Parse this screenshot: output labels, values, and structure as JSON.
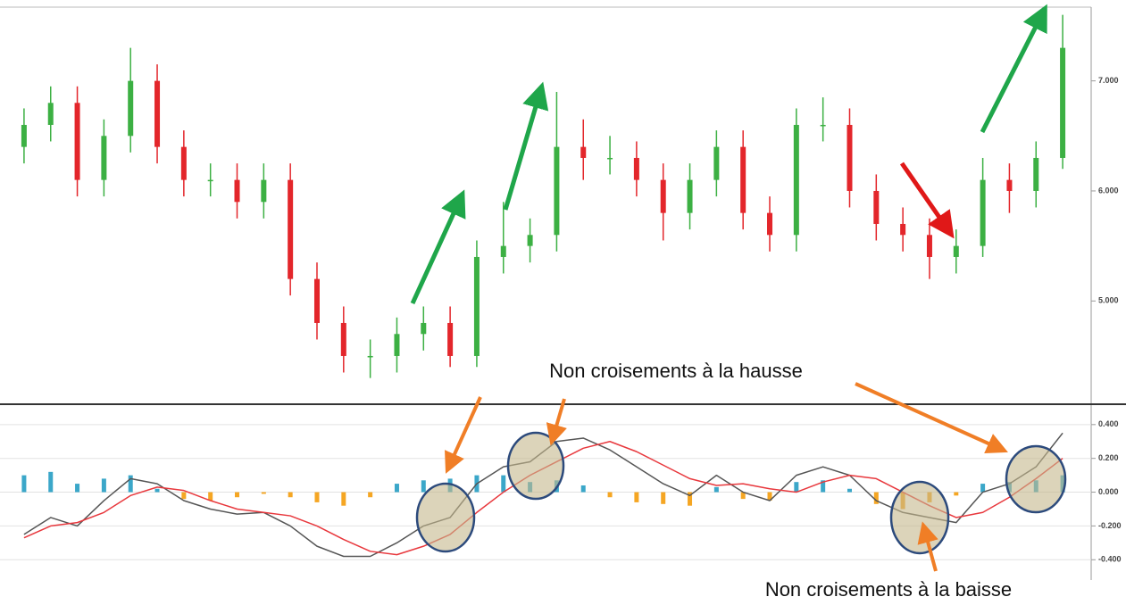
{
  "chart_data": [
    {
      "type": "candlestick",
      "open": [
        6.4,
        6.6,
        6.8,
        6.1,
        6.5,
        7.0,
        6.4,
        6.1,
        6.1,
        5.9,
        6.1,
        5.2,
        4.8,
        4.5,
        4.5,
        4.7,
        4.8,
        4.5,
        5.4,
        5.5,
        5.6,
        6.4,
        6.3,
        6.3,
        6.1,
        5.8,
        6.1,
        6.4,
        5.8,
        5.6,
        6.6,
        6.6,
        6.0,
        5.7,
        5.6,
        5.4,
        5.5,
        6.1,
        6.0,
        6.3
      ],
      "high": [
        6.75,
        6.95,
        6.95,
        6.65,
        7.3,
        7.15,
        6.55,
        6.25,
        6.25,
        6.25,
        6.25,
        5.35,
        4.95,
        4.65,
        4.85,
        4.95,
        4.95,
        5.55,
        5.9,
        5.75,
        6.9,
        6.65,
        6.5,
        6.45,
        6.25,
        6.25,
        6.55,
        6.55,
        5.95,
        6.75,
        6.85,
        6.75,
        6.15,
        5.85,
        5.75,
        5.65,
        6.3,
        6.25,
        6.45,
        7.6
      ],
      "low": [
        6.25,
        6.45,
        5.95,
        5.95,
        6.35,
        6.25,
        5.95,
        5.95,
        5.75,
        5.75,
        5.05,
        4.65,
        4.35,
        4.3,
        4.35,
        4.55,
        4.4,
        4.4,
        5.25,
        5.35,
        5.45,
        6.1,
        6.15,
        5.95,
        5.55,
        5.65,
        5.95,
        5.65,
        5.45,
        5.45,
        6.45,
        5.85,
        5.55,
        5.45,
        5.2,
        5.25,
        5.4,
        5.8,
        5.85,
        6.2
      ],
      "close": [
        6.6,
        6.8,
        6.1,
        6.5,
        7.0,
        6.4,
        6.1,
        6.1,
        5.9,
        6.1,
        5.2,
        4.8,
        4.5,
        4.5,
        4.7,
        4.8,
        4.5,
        5.4,
        5.5,
        5.6,
        6.4,
        6.3,
        6.3,
        6.1,
        5.8,
        6.1,
        6.4,
        5.8,
        5.6,
        6.6,
        6.6,
        6.0,
        5.7,
        5.6,
        5.4,
        5.5,
        6.1,
        6.0,
        6.3,
        7.3
      ],
      "up_color": "#3cb043",
      "down_color": "#e3262b",
      "ylim": [
        4.07,
        7.67
      ],
      "yticks": [
        {
          "value": 7,
          "label": "7.000"
        },
        {
          "value": 6,
          "label": "6.000"
        },
        {
          "value": 5,
          "label": "5.000"
        }
      ]
    },
    {
      "type": "macd",
      "series": [
        {
          "color": "#555555",
          "values": [
            -0.25,
            -0.15,
            -0.2,
            -0.05,
            0.08,
            0.05,
            -0.05,
            -0.1,
            -0.13,
            -0.12,
            -0.2,
            -0.32,
            -0.38,
            -0.38,
            -0.3,
            -0.2,
            -0.15,
            0.05,
            0.15,
            0.18,
            0.3,
            0.32,
            0.25,
            0.15,
            0.05,
            -0.02,
            0.1,
            0.0,
            -0.05,
            0.1,
            0.15,
            0.1,
            -0.05,
            -0.12,
            -0.15,
            -0.18,
            0.0,
            0.05,
            0.15,
            0.35
          ]
        },
        {
          "color": "#e8383d",
          "values": [
            -0.27,
            -0.2,
            -0.18,
            -0.12,
            -0.02,
            0.03,
            0.01,
            -0.05,
            -0.1,
            -0.12,
            -0.14,
            -0.2,
            -0.28,
            -0.35,
            -0.37,
            -0.32,
            -0.25,
            -0.12,
            0.0,
            0.1,
            0.18,
            0.26,
            0.3,
            0.24,
            0.16,
            0.08,
            0.04,
            0.05,
            0.02,
            0.0,
            0.06,
            0.1,
            0.08,
            0.0,
            -0.08,
            -0.15,
            -0.12,
            -0.03,
            0.08,
            0.2
          ]
        }
      ],
      "histogram": {
        "values": [
          0.1,
          0.12,
          0.05,
          0.08,
          0.1,
          0.02,
          -0.04,
          -0.05,
          -0.03,
          -0.01,
          -0.03,
          -0.06,
          -0.08,
          -0.03,
          0.05,
          0.07,
          0.08,
          0.1,
          0.1,
          0.06,
          0.07,
          0.04,
          -0.03,
          -0.06,
          -0.07,
          -0.08,
          0.03,
          -0.04,
          -0.05,
          0.06,
          0.07,
          0.02,
          -0.07,
          -0.1,
          -0.06,
          -0.02,
          0.05,
          0.06,
          0.07,
          0.1
        ],
        "positive_color": "#3ba7c9",
        "negative_color": "#f5a623"
      },
      "ylim": [
        -0.52,
        0.51
      ],
      "yticks": [
        {
          "value": 0.4,
          "label": "0.400"
        },
        {
          "value": 0.2,
          "label": "0.200"
        },
        {
          "value": 0,
          "label": "0.000"
        },
        {
          "value": -0.2,
          "label": "-0.200"
        },
        {
          "value": -0.4,
          "label": "-0.400"
        }
      ],
      "grid": true
    }
  ],
  "annotations": [
    "Non croisements à la hausse",
    "Non croisements à la baisse"
  ]
}
